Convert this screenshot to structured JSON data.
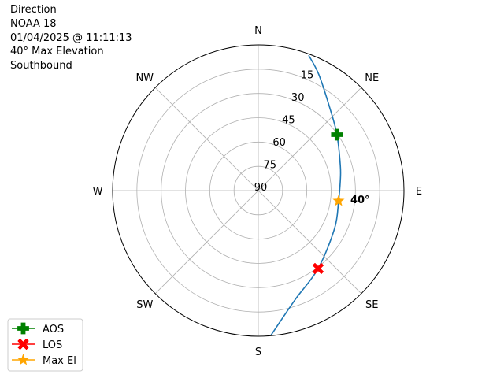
{
  "title_lines": [
    "Direction",
    "NOAA 18",
    "01/04/2025 @ 11:11:13",
    "40° Max Elevation",
    "Southbound"
  ],
  "chart_data": {
    "type": "polar",
    "theta_direction": "clockwise",
    "theta_zero": "north",
    "compass_labels": [
      {
        "label": "N",
        "az": 0
      },
      {
        "label": "NE",
        "az": 45
      },
      {
        "label": "E",
        "az": 90
      },
      {
        "label": "SE",
        "az": 135
      },
      {
        "label": "S",
        "az": 180
      },
      {
        "label": "SW",
        "az": 225
      },
      {
        "label": "W",
        "az": 270
      },
      {
        "label": "NW",
        "az": 315
      }
    ],
    "radial_axis": "elevation (inverted, 90 at center, 0 at edge)",
    "radial_ticks": [
      15,
      30,
      45,
      60,
      75,
      90
    ],
    "radial_label_az": 22.5,
    "grid": true,
    "track": {
      "color": "#1f77b4",
      "points": [
        {
          "az": 20.4,
          "el": 0.8
        },
        {
          "az": 27.6,
          "el": 9.2
        },
        {
          "az": 42,
          "el": 23.3
        },
        {
          "az": 54.6,
          "el": 30.4
        },
        {
          "az": 73,
          "el": 37
        },
        {
          "az": 83.4,
          "el": 39
        },
        {
          "az": 97.3,
          "el": 40
        },
        {
          "az": 116.3,
          "el": 37.4
        },
        {
          "az": 142.5,
          "el": 29.3
        },
        {
          "az": 161.2,
          "el": 19
        },
        {
          "az": 175,
          "el": 0.3
        }
      ]
    },
    "markers": [
      {
        "name": "AOS",
        "az": 54.6,
        "el": 30.4,
        "color": "#008000",
        "symbol": "plus"
      },
      {
        "name": "LOS",
        "az": 142.5,
        "el": 29.3,
        "color": "#ff0000",
        "symbol": "x"
      },
      {
        "name": "Max El",
        "az": 97.3,
        "el": 40,
        "color": "#ffa500",
        "symbol": "star"
      }
    ],
    "annotation": {
      "text": "40°",
      "az": 97.3,
      "el": 40
    },
    "legend": {
      "placement": "lower-left",
      "entries": [
        "AOS",
        "LOS",
        "Max El"
      ]
    }
  }
}
